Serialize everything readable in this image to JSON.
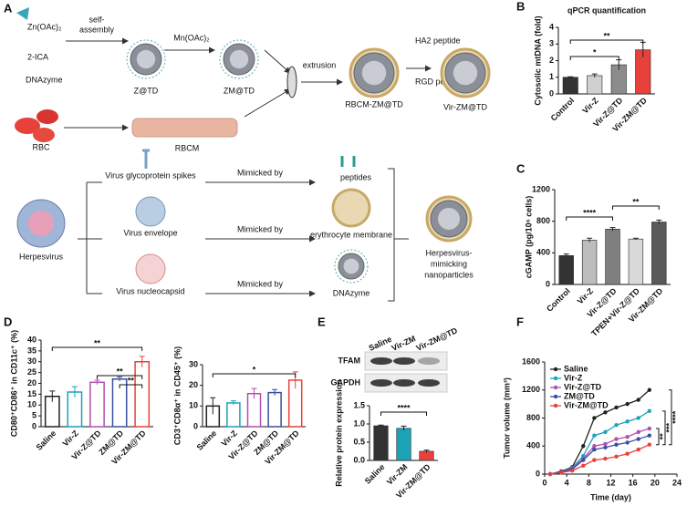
{
  "panel_a": {
    "label": "A",
    "items": [
      "Zn(OAc)₂",
      "2-ICA",
      "DNAzyme",
      "self-",
      "assembly",
      "Mn(OAc)₂",
      "Z@TD",
      "ZM@TD",
      "extrusion",
      "HA2 peptide",
      "RGD peptide",
      "RBCM-ZM@TD",
      "Vir-ZM@TD",
      "RBC",
      "RBCM",
      "Herpesvirus",
      "Virus glycoprotein spikes",
      "Mimicked by",
      "peptides",
      "Virus envelope",
      "Mimicked by",
      "erythrocyte membrane",
      "Virus nucleocapsid",
      "Mimicked by",
      "DNAzyme",
      "Herpesvirus-",
      "mimicking",
      "nanoparticles"
    ]
  },
  "chart_data": [
    {
      "type": "bar",
      "panel": "B",
      "title": "qPCR quantification",
      "y_label": "Cytosolic mtDNA (fold)",
      "categories": [
        "Control",
        "Vir-Z",
        "Vir-Z@TD",
        "Vir-ZM@TD"
      ],
      "values": [
        1.0,
        1.1,
        1.75,
        2.65
      ],
      "errors": [
        0.03,
        0.1,
        0.3,
        0.45
      ],
      "colors": [
        "#333333",
        "#d0d0d0",
        "#8c8c8c",
        "#e8413c"
      ],
      "bar_style": "filled",
      "ylim": [
        0,
        4
      ],
      "yticks": [
        0,
        1,
        2,
        3,
        4
      ],
      "annotations": [
        "**",
        "*"
      ]
    },
    {
      "type": "bar",
      "panel": "C",
      "y_label": "cGAMP (pg/10⁶ cells)",
      "categories": [
        "Control",
        "Vir-Z",
        "Vir-Z@TD",
        "TPEN+Vir-Z@TD",
        "Vir-ZM@TD"
      ],
      "values": [
        365,
        560,
        700,
        575,
        790
      ],
      "errors": [
        20,
        25,
        20,
        10,
        25
      ],
      "colors": [
        "#333333",
        "#bdbdbd",
        "#7f7f7f",
        "#d9d9d9",
        "#5a5a5a"
      ],
      "bar_style": "filled",
      "ylim": [
        0,
        1200
      ],
      "yticks": [
        0,
        400,
        800,
        1200
      ],
      "annotations": [
        "****",
        "**"
      ]
    },
    {
      "type": "bar",
      "panel": "D",
      "y_label": "CD80⁺CD86⁺ in CD11c⁺ (%)",
      "categories": [
        "Saline",
        "Vir-Z",
        "Vir-Z@TD",
        "ZM@TD",
        "Vir-ZM@TD"
      ],
      "values": [
        14,
        16,
        20.5,
        22,
        30
      ],
      "errors": [
        2.5,
        2.5,
        1,
        1,
        2.5
      ],
      "colors": [
        "#222222",
        "#1ba3b8",
        "#b04fb0",
        "#3a4fa0",
        "#e8413c"
      ],
      "bar_style": "open",
      "ylim": [
        0,
        40
      ],
      "yticks": [
        0,
        5,
        10,
        15,
        20,
        25,
        30,
        35,
        40
      ],
      "annotations": [
        "**",
        "**",
        "**"
      ]
    },
    {
      "type": "bar",
      "y_label": "CD3⁺CD8α⁺ in CD45⁺ (%)",
      "categories": [
        "Saline",
        "Vir-Z",
        "Vir-Z@TD",
        "ZM@TD",
        "Vir-ZM@TD"
      ],
      "values": [
        10,
        11.5,
        16,
        16.5,
        22.5
      ],
      "errors": [
        4,
        1,
        2.5,
        1.5,
        4
      ],
      "colors": [
        "#222222",
        "#1ba3b8",
        "#b04fb0",
        "#3a4fa0",
        "#e8413c"
      ],
      "bar_style": "open",
      "ylim": [
        0,
        30
      ],
      "yticks": [
        0,
        10,
        20,
        30
      ],
      "annotations": [
        "*"
      ]
    },
    {
      "type": "bar",
      "panel": "E",
      "y_label": "Relative protein expression",
      "blot": {
        "lanes": [
          "Saline",
          "Vir-ZM",
          "Vir-ZM@TD"
        ],
        "proteins": [
          "TFAM",
          "GAPDH"
        ]
      },
      "categories": [
        "Saline",
        "Vir-ZM",
        "Vir-ZM@TD"
      ],
      "values": [
        0.95,
        0.88,
        0.25
      ],
      "errors": [
        0.02,
        0.06,
        0.03
      ],
      "colors": [
        "#333333",
        "#1ba3b8",
        "#e8413c"
      ],
      "bar_style": "filled",
      "ylim": [
        0,
        1.5
      ],
      "yticks": [
        {
          "value": 0,
          "label": "0.0"
        },
        0.5,
        {
          "value": 1,
          "label": "1.0"
        },
        1.5
      ],
      "annotations": [
        "****"
      ]
    },
    {
      "type": "line",
      "panel": "F",
      "x_label": "Time (day)",
      "y_label": "Tumor volume (mm³)",
      "x": [
        1,
        3,
        5,
        7,
        9,
        11,
        13,
        15,
        17,
        19
      ],
      "series": [
        {
          "name": "Saline",
          "color": "#222222",
          "values": [
            0,
            40,
            100,
            400,
            800,
            880,
            950,
            1000,
            1060,
            1200
          ]
        },
        {
          "name": "Vir-Z",
          "color": "#1ba3b8",
          "values": [
            0,
            30,
            90,
            260,
            550,
            600,
            700,
            750,
            800,
            900
          ]
        },
        {
          "name": "Vir-Z@TD",
          "color": "#b04fb0",
          "values": [
            0,
            30,
            80,
            220,
            400,
            430,
            500,
            530,
            600,
            650
          ]
        },
        {
          "name": "ZM@TD",
          "color": "#3a4fa0",
          "values": [
            0,
            25,
            70,
            200,
            350,
            380,
            420,
            450,
            500,
            550
          ]
        },
        {
          "name": "Vir-ZM@TD",
          "color": "#e8413c",
          "values": [
            0,
            20,
            50,
            120,
            200,
            220,
            250,
            290,
            350,
            420
          ]
        }
      ],
      "xlim": [
        0,
        24
      ],
      "xticks": [
        0,
        4,
        8,
        12,
        16,
        20,
        24
      ],
      "ylim": [
        0,
        1600
      ],
      "yticks": [
        0,
        400,
        800,
        1200,
        1600
      ],
      "annotations": [
        "**",
        "***",
        "****"
      ]
    }
  ]
}
